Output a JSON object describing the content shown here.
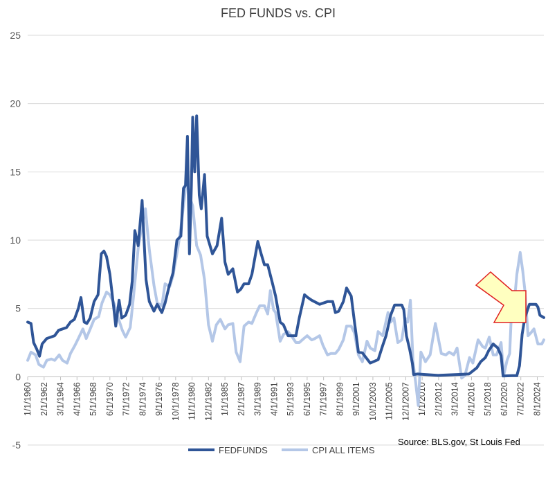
{
  "chart_data": {
    "type": "line",
    "title": "FED FUNDS vs. CPI",
    "xlabel": "",
    "ylabel": "",
    "ylim": [
      -5,
      25
    ],
    "yticks": [
      -5,
      0,
      5,
      10,
      15,
      20,
      25
    ],
    "xlim": [
      "1960-01",
      "2025-06"
    ],
    "xtick_labels": [
      "1/1/1960",
      "2/1/1962",
      "3/1/1964",
      "4/1/1966",
      "5/1/1968",
      "6/1/1970",
      "7/1/1972",
      "8/1/1974",
      "9/1/1976",
      "10/1/1978",
      "11/1/1980",
      "12/1/1982",
      "1/1/1985",
      "2/1/1987",
      "3/1/1989",
      "4/1/1991",
      "5/1/1993",
      "6/1/1995",
      "7/1/1997",
      "8/1/1999",
      "9/1/2001",
      "10/1/2003",
      "11/1/2005",
      "12/1/2007",
      "1/1/2010",
      "2/1/2012",
      "3/1/2014",
      "4/1/2016",
      "5/1/2018",
      "6/1/2020",
      "7/1/2022",
      "8/1/2024"
    ],
    "grid": "horizontal",
    "legend_position": "bottom",
    "source": "Source: BLS.gov, St Louis Fed",
    "annotation": "arrow",
    "colors": {
      "fedfunds": "#2f5597",
      "cpi": "#b4c7e7",
      "arrow_fill": "#ffffc0",
      "arrow_stroke": "#e02020",
      "grid": "#d9d9d9"
    },
    "series": [
      {
        "name": "FEDFUNDS",
        "x": [
          "1960-01",
          "1960-06",
          "1960-10",
          "1961-03",
          "1961-07",
          "1961-11",
          "1962-06",
          "1962-12",
          "1963-06",
          "1963-12",
          "1964-06",
          "1964-12",
          "1965-06",
          "1965-12",
          "1966-06",
          "1966-10",
          "1967-03",
          "1967-07",
          "1967-12",
          "1968-06",
          "1968-12",
          "1969-05",
          "1969-09",
          "1970-01",
          "1970-06",
          "1970-12",
          "1971-03",
          "1971-08",
          "1971-12",
          "1972-06",
          "1972-12",
          "1973-04",
          "1973-08",
          "1974-01",
          "1974-07",
          "1974-10",
          "1975-01",
          "1975-06",
          "1976-01",
          "1976-06",
          "1977-01",
          "1977-06",
          "1977-12",
          "1978-06",
          "1978-12",
          "1979-06",
          "1979-10",
          "1980-01",
          "1980-04",
          "1980-07",
          "1980-10",
          "1980-12",
          "1981-03",
          "1981-06",
          "1981-10",
          "1982-01",
          "1982-06",
          "1982-10",
          "1983-06",
          "1984-01",
          "1984-08",
          "1985-01",
          "1985-06",
          "1986-01",
          "1986-08",
          "1987-01",
          "1987-06",
          "1988-01",
          "1988-06",
          "1989-03",
          "1989-08",
          "1990-01",
          "1990-06",
          "1991-01",
          "1991-06",
          "1992-01",
          "1992-06",
          "1993-01",
          "1994-01",
          "1994-06",
          "1995-02",
          "1995-07",
          "1996-01",
          "1997-01",
          "1998-01",
          "1998-09",
          "1999-01",
          "1999-06",
          "2000-01",
          "2000-06",
          "2001-01",
          "2001-06",
          "2001-12",
          "2002-06",
          "2003-06",
          "2004-06",
          "2005-01",
          "2005-06",
          "2006-01",
          "2006-07",
          "2007-06",
          "2007-09",
          "2008-01",
          "2008-06",
          "2008-10",
          "2008-12",
          "2009-06",
          "2012-01",
          "2015-12",
          "2016-12",
          "2017-06",
          "2018-01",
          "2018-06",
          "2019-01",
          "2019-08",
          "2020-01",
          "2020-04",
          "2021-06",
          "2022-01",
          "2022-05",
          "2022-09",
          "2023-01",
          "2023-08",
          "2024-06",
          "2024-09",
          "2024-12",
          "2025-06"
        ],
        "values": [
          4.0,
          3.9,
          2.5,
          2.0,
          1.5,
          2.4,
          2.8,
          2.9,
          3.0,
          3.4,
          3.5,
          3.6,
          4.0,
          4.2,
          5.0,
          5.8,
          4.0,
          3.9,
          4.3,
          5.5,
          6.0,
          9.0,
          9.2,
          8.8,
          7.5,
          5.0,
          3.7,
          5.6,
          4.3,
          4.5,
          5.3,
          7.0,
          10.7,
          9.6,
          12.9,
          10.0,
          7.1,
          5.5,
          4.8,
          5.3,
          4.7,
          5.4,
          6.6,
          7.6,
          10.0,
          10.3,
          13.8,
          14.0,
          17.6,
          9.0,
          14.0,
          19.0,
          15.0,
          19.1,
          13.3,
          12.3,
          14.8,
          10.3,
          9.0,
          9.6,
          11.6,
          8.4,
          7.5,
          7.9,
          6.2,
          6.4,
          6.8,
          6.8,
          7.5,
          9.9,
          9.0,
          8.2,
          8.2,
          6.9,
          5.9,
          4.0,
          3.8,
          3.0,
          3.0,
          4.3,
          6.0,
          5.8,
          5.6,
          5.3,
          5.5,
          5.5,
          4.7,
          4.8,
          5.5,
          6.5,
          5.9,
          4.0,
          1.8,
          1.75,
          1.0,
          1.25,
          2.3,
          3.0,
          4.5,
          5.25,
          5.25,
          4.9,
          3.0,
          2.0,
          1.0,
          0.16,
          0.2,
          0.1,
          0.2,
          0.65,
          1.1,
          1.4,
          1.9,
          2.4,
          2.1,
          1.55,
          0.05,
          0.08,
          0.08,
          0.8,
          3.1,
          4.3,
          5.3,
          5.3,
          5.1,
          4.5,
          4.33
        ]
      },
      {
        "name": "CPI ALL ITEMS",
        "x": [
          "1960-01",
          "1960-06",
          "1961-01",
          "1961-06",
          "1962-01",
          "1962-06",
          "1963-01",
          "1963-06",
          "1964-01",
          "1964-06",
          "1965-01",
          "1965-06",
          "1966-01",
          "1966-06",
          "1967-01",
          "1967-06",
          "1968-01",
          "1968-06",
          "1969-01",
          "1969-06",
          "1970-01",
          "1970-06",
          "1971-01",
          "1971-06",
          "1972-01",
          "1972-06",
          "1973-01",
          "1973-06",
          "1974-01",
          "1974-06",
          "1974-12",
          "1975-06",
          "1976-01",
          "1976-06",
          "1977-01",
          "1977-06",
          "1978-01",
          "1978-06",
          "1979-01",
          "1979-06",
          "1980-03",
          "1980-07",
          "1980-12",
          "1981-06",
          "1981-12",
          "1982-06",
          "1982-12",
          "1983-06",
          "1983-12",
          "1984-06",
          "1985-01",
          "1985-06",
          "1986-01",
          "1986-06",
          "1986-12",
          "1987-06",
          "1988-01",
          "1988-06",
          "1989-01",
          "1989-06",
          "1990-01",
          "1990-06",
          "1990-10",
          "1991-03",
          "1991-06",
          "1992-01",
          "1992-06",
          "1993-01",
          "1993-06",
          "1994-01",
          "1994-06",
          "1995-01",
          "1995-06",
          "1996-01",
          "1996-06",
          "1997-01",
          "1997-06",
          "1998-01",
          "1998-06",
          "1999-01",
          "1999-06",
          "2000-01",
          "2000-06",
          "2001-01",
          "2001-06",
          "2001-12",
          "2002-06",
          "2003-01",
          "2003-06",
          "2004-01",
          "2004-06",
          "2005-01",
          "2005-09",
          "2006-01",
          "2006-06",
          "2006-12",
          "2007-06",
          "2007-11",
          "2008-03",
          "2008-07",
          "2008-11",
          "2009-03",
          "2009-07",
          "2009-11",
          "2010-06",
          "2011-01",
          "2011-09",
          "2012-06",
          "2013-01",
          "2013-06",
          "2014-01",
          "2014-06",
          "2015-01",
          "2015-06",
          "2016-01",
          "2016-06",
          "2017-02",
          "2017-09",
          "2018-01",
          "2018-07",
          "2019-01",
          "2019-06",
          "2020-01",
          "2020-05",
          "2020-10",
          "2021-02",
          "2021-05",
          "2021-09",
          "2022-01",
          "2022-06",
          "2022-10",
          "2023-01",
          "2023-06",
          "2023-10",
          "2024-03",
          "2024-09",
          "2025-03",
          "2025-06"
        ],
        "values": [
          1.2,
          1.8,
          1.6,
          0.9,
          0.7,
          1.2,
          1.3,
          1.2,
          1.6,
          1.2,
          1.0,
          1.7,
          2.3,
          2.8,
          3.5,
          2.8,
          3.6,
          4.2,
          4.4,
          5.4,
          6.2,
          6.0,
          5.3,
          4.4,
          3.4,
          2.9,
          3.6,
          5.9,
          9.4,
          10.9,
          12.3,
          9.3,
          6.7,
          5.4,
          5.2,
          6.8,
          6.6,
          7.4,
          9.3,
          10.9,
          14.6,
          13.2,
          12.5,
          9.6,
          8.9,
          7.1,
          3.8,
          2.6,
          3.8,
          4.2,
          3.5,
          3.8,
          3.9,
          1.8,
          1.1,
          3.7,
          4.0,
          3.9,
          4.7,
          5.2,
          5.2,
          4.6,
          6.3,
          4.9,
          4.7,
          2.6,
          3.1,
          3.3,
          3.0,
          2.5,
          2.5,
          2.8,
          3.0,
          2.7,
          2.8,
          3.0,
          2.3,
          1.6,
          1.7,
          1.7,
          2.0,
          2.7,
          3.7,
          3.7,
          3.2,
          1.6,
          1.1,
          2.6,
          2.1,
          1.9,
          3.3,
          3.0,
          4.7,
          4.0,
          4.3,
          2.5,
          2.7,
          4.3,
          4.0,
          5.6,
          1.1,
          -0.4,
          -2.1,
          1.8,
          1.1,
          1.6,
          3.9,
          1.7,
          1.6,
          1.8,
          1.6,
          2.1,
          -0.1,
          0.1,
          1.4,
          1.0,
          2.7,
          2.2,
          2.1,
          2.9,
          1.6,
          1.6,
          2.5,
          0.1,
          1.2,
          1.7,
          5.0,
          5.4,
          7.5,
          9.1,
          7.7,
          6.4,
          3.0,
          3.2,
          3.5,
          2.4,
          2.4,
          2.7
        ]
      }
    ]
  }
}
